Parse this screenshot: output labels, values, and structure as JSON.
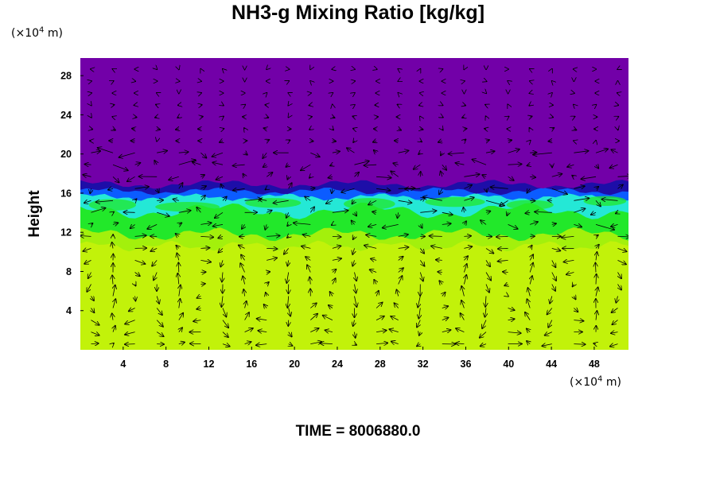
{
  "title": "NH3-g Mixing Ratio [kg/kg]",
  "time_label": "TIME = 8006880.0",
  "x_unit": {
    "prefix": "(×10",
    "exp": "4",
    "suffix": " m)"
  },
  "y_unit": {
    "prefix": "(×10",
    "exp": "4",
    "suffix": " m)"
  },
  "colors": {
    "top_layer": "#7200a8",
    "band_dark": "#1d0ea8",
    "band_blue": "#0b5cff",
    "band_cyan": "#24e8d6",
    "band_green": "#22e82a",
    "band_light_green": "#8bef0e",
    "bottom_layer": "#c2f20a",
    "arrows": "#000000"
  },
  "chart_data": {
    "type": "heatmap",
    "title": "NH3-g Mixing Ratio [kg/kg]",
    "xlabel": "",
    "ylabel": "Height",
    "x_unit": "×10^4 m",
    "y_unit": "×10^4 m",
    "xlim": [
      0,
      51.2
    ],
    "ylim": [
      0,
      29.8
    ],
    "x_ticks": [
      4,
      8,
      12,
      16,
      20,
      24,
      28,
      32,
      36,
      40,
      44,
      48
    ],
    "y_ticks": [
      4,
      8,
      12,
      16,
      20,
      24,
      28
    ],
    "overlay": "velocity vector field",
    "layers": [
      {
        "name": "upper",
        "y_from": 16.8,
        "y_to": 29.8,
        "color": "#7200a8"
      },
      {
        "name": "interface",
        "y_from": 16.0,
        "y_to": 16.8,
        "color": "#1d0ea8"
      },
      {
        "name": "cyan band",
        "y_from": 14.0,
        "y_to": 16.0,
        "color": "#24e8d6"
      },
      {
        "name": "green band",
        "y_from": 11.8,
        "y_to": 14.0,
        "color": "#22e82a"
      },
      {
        "name": "lower",
        "y_from": 0,
        "y_to": 11.8,
        "color": "#c2f20a"
      }
    ]
  }
}
